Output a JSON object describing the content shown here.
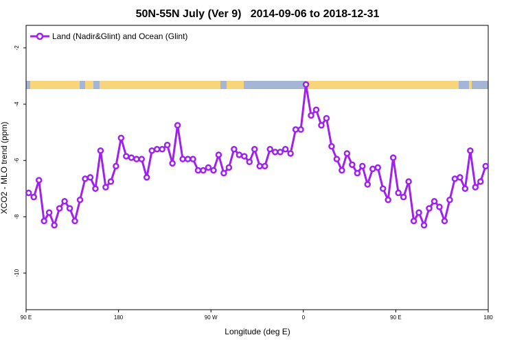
{
  "chart_data": {
    "type": "line",
    "title": "50N-55N July (Ver 9)   2014-09-06 to 2018-12-31",
    "xlabel": "Longitude (deg E)",
    "ylabel": "XCO2 - MLO trend (ppm)",
    "xlim": [
      90,
      540
    ],
    "ylim": [
      -11.3,
      -1.2
    ],
    "xticks": [
      {
        "value": 90,
        "label": "90 E"
      },
      180,
      {
        "value": 270,
        "label": "90 W"
      },
      {
        "value": 360,
        "label": "0"
      },
      {
        "value": 450,
        "label": "90 E"
      },
      {
        "value": 540,
        "label": "180"
      }
    ],
    "yticks": [
      -2,
      -4,
      -6,
      -8,
      -10
    ],
    "legend": "upper left",
    "series": [
      {
        "name": "Land (Nadir&Glint) and Ocean (Glint)",
        "color": "#a020f0",
        "x": [
          92.5,
          97.5,
          102.5,
          107.5,
          112.5,
          117.5,
          122.5,
          127.5,
          132.5,
          137.5,
          142.5,
          147.5,
          152.5,
          157.5,
          162.5,
          167.5,
          172.5,
          177.5,
          182.5,
          187.5,
          192.5,
          197.5,
          202.5,
          207.5,
          212.5,
          217.5,
          222.5,
          227.5,
          232.5,
          237.5,
          242.5,
          247.5,
          252.5,
          257.5,
          262.5,
          267.5,
          272.5,
          277.5,
          282.5,
          287.5,
          292.5,
          297.5,
          302.5,
          307.5,
          312.5,
          317.5,
          322.5,
          327.5,
          332.5,
          337.5,
          342.5,
          347.5,
          352.5,
          357.5,
          362.5,
          367.5,
          372.5,
          377.5,
          382.5,
          387.5,
          392.5,
          397.5,
          402.5,
          407.5,
          412.5,
          417.5,
          422.5,
          427.5,
          432.5,
          437.5,
          442.5,
          447.5,
          452.5,
          457.5,
          462.5,
          467.5,
          472.5,
          477.5,
          482.5,
          487.5,
          492.5,
          497.5,
          502.5,
          507.5,
          512.5,
          517.5,
          522.5,
          527.5,
          532.5,
          537.5
        ],
        "values": [
          -7.15,
          -7.3,
          -6.7,
          -8.15,
          -7.85,
          -8.3,
          -7.7,
          -7.45,
          -7.7,
          -8.15,
          -7.4,
          -6.65,
          -6.6,
          -7.0,
          -5.65,
          -6.95,
          -6.75,
          -6.2,
          -5.2,
          -5.85,
          -5.9,
          -5.95,
          -5.95,
          -6.6,
          -5.65,
          -5.6,
          -5.6,
          -5.45,
          -6.1,
          -4.75,
          -5.95,
          -5.95,
          -5.95,
          -6.35,
          -6.35,
          -6.25,
          -6.35,
          -5.8,
          -6.45,
          -6.25,
          -5.6,
          -5.8,
          -5.85,
          -6.05,
          -5.6,
          -6.2,
          -6.2,
          -5.6,
          -5.7,
          -5.7,
          -5.6,
          -5.75,
          -4.9,
          -4.9,
          -3.3,
          -4.4,
          -4.2,
          -4.75,
          -4.5,
          -5.5,
          -5.95,
          -6.35,
          -5.75,
          -6.15,
          -6.45,
          -6.2,
          -6.85,
          -6.3,
          -6.25,
          -7.0,
          -7.4,
          -5.9,
          -7.15,
          -7.3,
          -6.75,
          -8.15,
          -7.85,
          -8.3,
          -7.7,
          -7.45,
          -7.65,
          -8.15,
          -7.4,
          -6.65,
          -6.6,
          -7.0,
          -5.65,
          -6.95,
          -6.75,
          -6.2
        ]
      }
    ]
  }
}
